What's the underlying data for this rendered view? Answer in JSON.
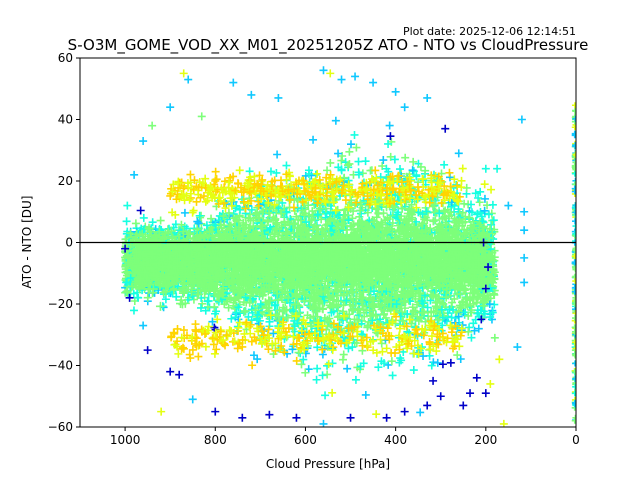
{
  "chart_data": {
    "type": "scatter",
    "plot_date": "Plot date: 2025-12-06 12:14:51",
    "title": "S-O3M_GOME_VOD_XX_M01_20251205Z ATO - NTO vs CloudPressure",
    "xlabel": "Cloud Pressure [hPa]",
    "ylabel": "ATO - NTO [DU]",
    "xlim": [
      1100,
      0
    ],
    "ylim": [
      -60,
      60
    ],
    "xticks": [
      1000,
      800,
      600,
      400,
      200,
      0
    ],
    "yticks": [
      -60,
      -40,
      -20,
      0,
      20,
      40,
      60
    ],
    "xtick_labels": [
      "1000",
      "800",
      "600",
      "400",
      "200",
      "0"
    ],
    "ytick_labels": [
      "−60",
      "−40",
      "−20",
      "0",
      "20",
      "40",
      "60"
    ],
    "reference_line_y": 0,
    "marker": "+",
    "density_colors": [
      "#0000c8",
      "#0fc8ff",
      "#16ffe1",
      "#7dff7a",
      "#e4ff12",
      "#ffd400"
    ],
    "cloud_envelope": {
      "x_range": [
        100,
        1000
      ],
      "core_y_range": [
        -28,
        18
      ],
      "outer_y_range": [
        -60,
        57
      ]
    },
    "sample_points": [
      {
        "x": 870,
        "y": 55,
        "c": 4
      },
      {
        "x": 860,
        "y": 53,
        "c": 1
      },
      {
        "x": 760,
        "y": 52,
        "c": 1
      },
      {
        "x": 720,
        "y": 48,
        "c": 1
      },
      {
        "x": 660,
        "y": 47,
        "c": 1
      },
      {
        "x": 560,
        "y": 56,
        "c": 1
      },
      {
        "x": 545,
        "y": 55,
        "c": 4
      },
      {
        "x": 520,
        "y": 53,
        "c": 1
      },
      {
        "x": 490,
        "y": 54,
        "c": 1
      },
      {
        "x": 450,
        "y": 52,
        "c": 1
      },
      {
        "x": 400,
        "y": 49,
        "c": 1
      },
      {
        "x": 380,
        "y": 44,
        "c": 1
      },
      {
        "x": 330,
        "y": 47,
        "c": 1
      },
      {
        "x": 290,
        "y": 37,
        "c": 0
      },
      {
        "x": 260,
        "y": 29,
        "c": 1
      },
      {
        "x": 200,
        "y": 24,
        "c": 2
      },
      {
        "x": 175,
        "y": 24,
        "c": 2
      },
      {
        "x": 150,
        "y": 12,
        "c": 1
      },
      {
        "x": 120,
        "y": 40,
        "c": 1
      },
      {
        "x": 115,
        "y": 10,
        "c": 1
      },
      {
        "x": 115,
        "y": 4,
        "c": 1
      },
      {
        "x": 115,
        "y": -5,
        "c": 1
      },
      {
        "x": 115,
        "y": -13,
        "c": 1
      },
      {
        "x": 130,
        "y": -34,
        "c": 1
      },
      {
        "x": 180,
        "y": -31,
        "c": 3
      },
      {
        "x": 170,
        "y": -38,
        "c": 4
      },
      {
        "x": 190,
        "y": -46,
        "c": 4
      },
      {
        "x": 200,
        "y": -49,
        "c": 0
      },
      {
        "x": 220,
        "y": -44,
        "c": 0
      },
      {
        "x": 235,
        "y": -49,
        "c": 0
      },
      {
        "x": 250,
        "y": -53,
        "c": 0
      },
      {
        "x": 160,
        "y": -59,
        "c": 4
      },
      {
        "x": 300,
        "y": -50,
        "c": 0
      },
      {
        "x": 330,
        "y": -53,
        "c": 0
      },
      {
        "x": 380,
        "y": -55,
        "c": 0
      },
      {
        "x": 420,
        "y": -57,
        "c": 0
      },
      {
        "x": 500,
        "y": -57,
        "c": 0
      },
      {
        "x": 560,
        "y": -59,
        "c": 1
      },
      {
        "x": 620,
        "y": -57,
        "c": 0
      },
      {
        "x": 680,
        "y": -56,
        "c": 0
      },
      {
        "x": 740,
        "y": -57,
        "c": 0
      },
      {
        "x": 800,
        "y": -55,
        "c": 0
      },
      {
        "x": 850,
        "y": -51,
        "c": 1
      },
      {
        "x": 920,
        "y": -55,
        "c": 4
      },
      {
        "x": 880,
        "y": -43,
        "c": 0
      },
      {
        "x": 900,
        "y": -42,
        "c": 0
      },
      {
        "x": 950,
        "y": -35,
        "c": 0
      },
      {
        "x": 960,
        "y": -27,
        "c": 1
      },
      {
        "x": 990,
        "y": -18,
        "c": 0
      },
      {
        "x": 1000,
        "y": -2,
        "c": 0
      },
      {
        "x": 995,
        "y": 12,
        "c": 2
      },
      {
        "x": 980,
        "y": 22,
        "c": 1
      },
      {
        "x": 960,
        "y": 33,
        "c": 1
      },
      {
        "x": 940,
        "y": 38,
        "c": 3
      },
      {
        "x": 900,
        "y": 44,
        "c": 1
      },
      {
        "x": 830,
        "y": 41,
        "c": 3
      },
      {
        "x": 200,
        "y": -15,
        "c": 0
      },
      {
        "x": 195,
        "y": -8,
        "c": 0
      },
      {
        "x": 205,
        "y": 0,
        "c": 0
      },
      {
        "x": 210,
        "y": -25,
        "c": 0
      },
      {
        "x": 450,
        "y": -32,
        "c": 4
      },
      {
        "x": 620,
        "y": 19,
        "c": 5
      },
      {
        "x": 800,
        "y": 20,
        "c": 5
      }
    ]
  }
}
